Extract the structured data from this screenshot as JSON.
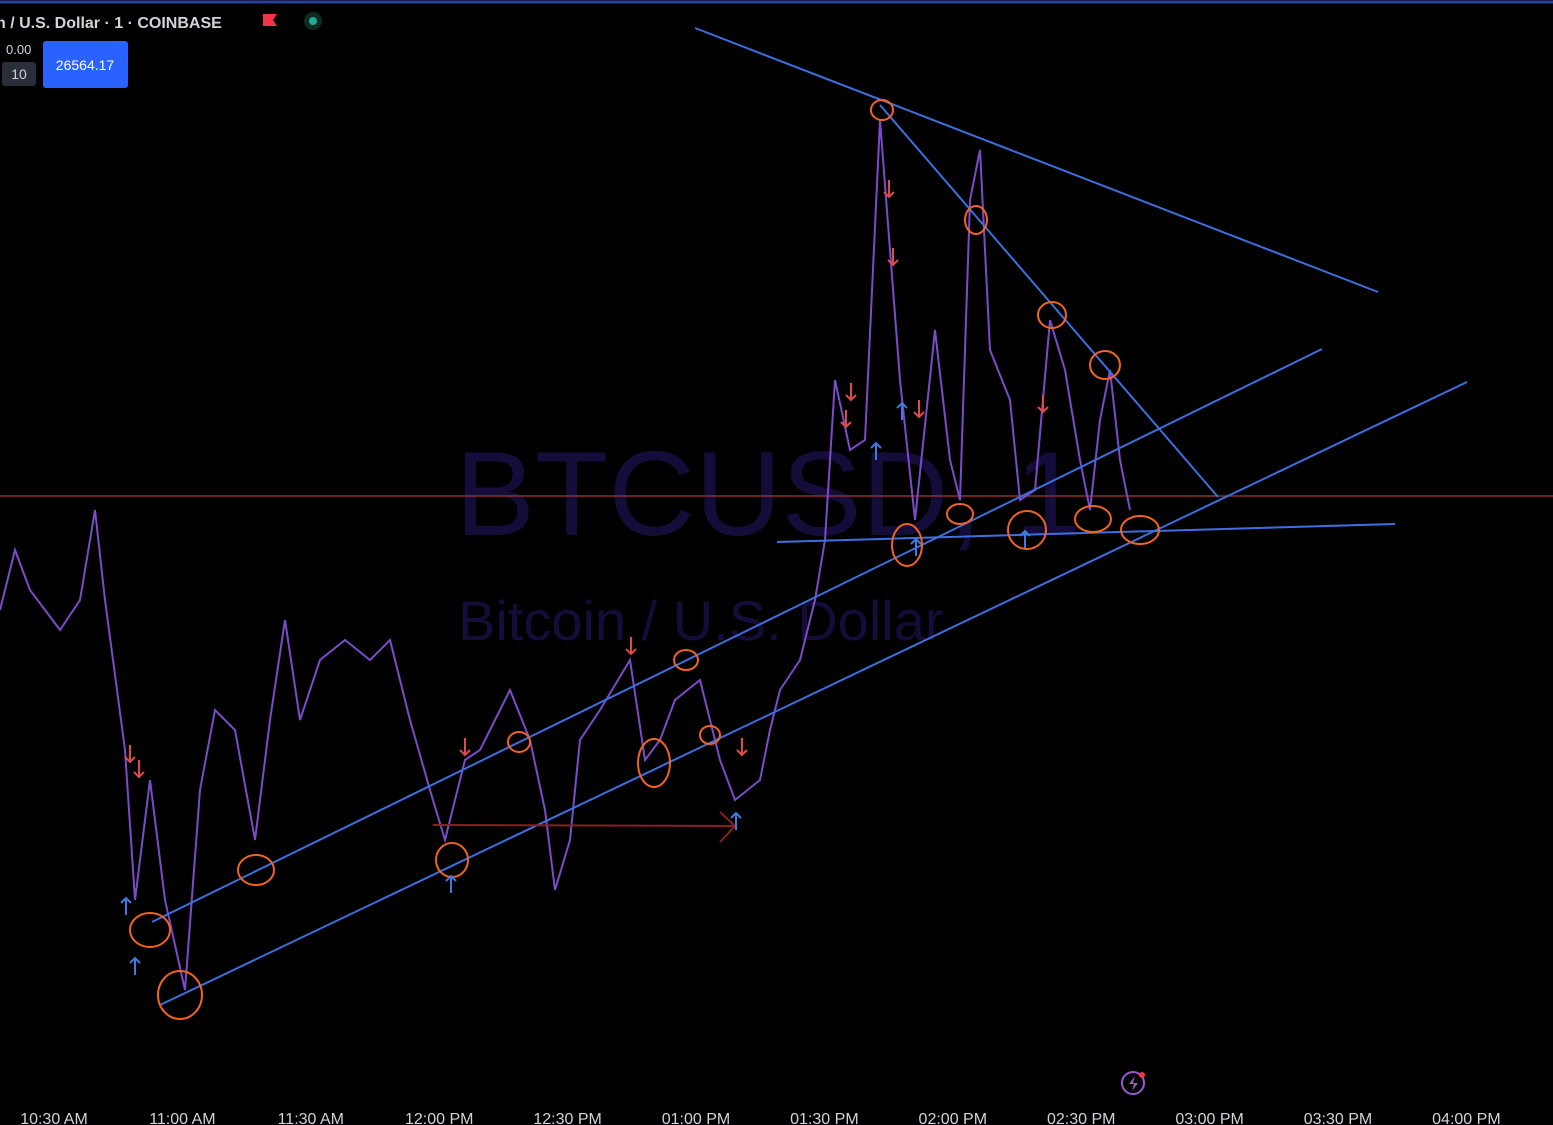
{
  "header": {
    "symbol": "n / U.S. Dollar · 1 · COINBASE",
    "change": "0.00",
    "qty": "10",
    "price": "26564.17"
  },
  "watermark": {
    "ticker": "BTCUSD, 1",
    "name": "Bitcoin / U.S. Dollar"
  },
  "time_axis": [
    "10:30 AM",
    "11:00 AM",
    "11:30 AM",
    "12:00 PM",
    "12:30 PM",
    "01:00 PM",
    "01:30 PM",
    "02:00 PM",
    "02:30 PM",
    "03:00 PM",
    "03:30 PM",
    "04:00 PM"
  ]
}
